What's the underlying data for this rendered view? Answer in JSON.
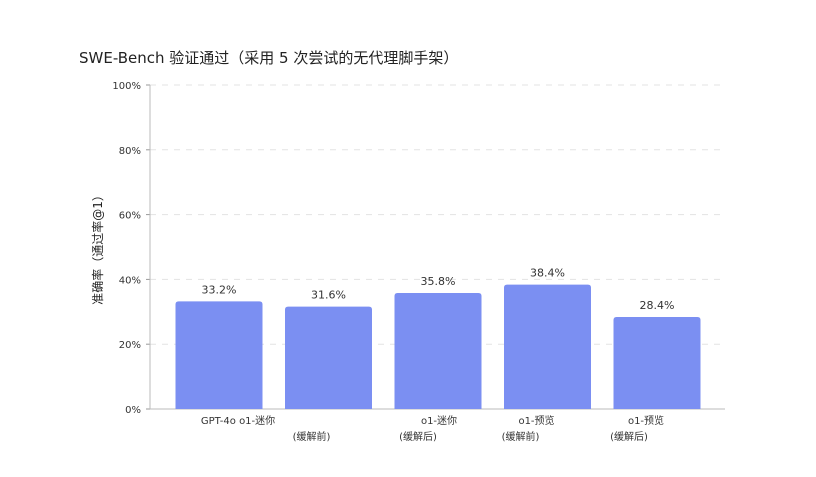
{
  "chart_data": {
    "type": "bar",
    "title": "SWE-Bench 验证通过（采用 5 次尝试的无代理脚手架）",
    "ylabel": "准确率（通过率@1）",
    "xlabel": "",
    "ylim": [
      0,
      100
    ],
    "yticks": [
      0,
      20,
      40,
      60,
      80,
      100
    ],
    "ytick_labels": [
      "0%",
      "20%",
      "40%",
      "60%",
      "80%",
      "100%"
    ],
    "grid": true,
    "bar_color": "#7b8ff2",
    "categories": [
      [
        "GPT-4o o1-迷你"
      ],
      [
        "",
        "(缓解前)"
      ],
      [
        "o1-迷你",
        "(缓解后)"
      ],
      [
        "o1-预览",
        "(缓解前)"
      ],
      [
        "o1-预览",
        "(缓解后)"
      ]
    ],
    "values": [
      33.2,
      31.6,
      35.8,
      38.4,
      28.4
    ],
    "value_labels": [
      "33.2%",
      "31.6%",
      "35.8%",
      "38.4%",
      "28.4%"
    ]
  }
}
